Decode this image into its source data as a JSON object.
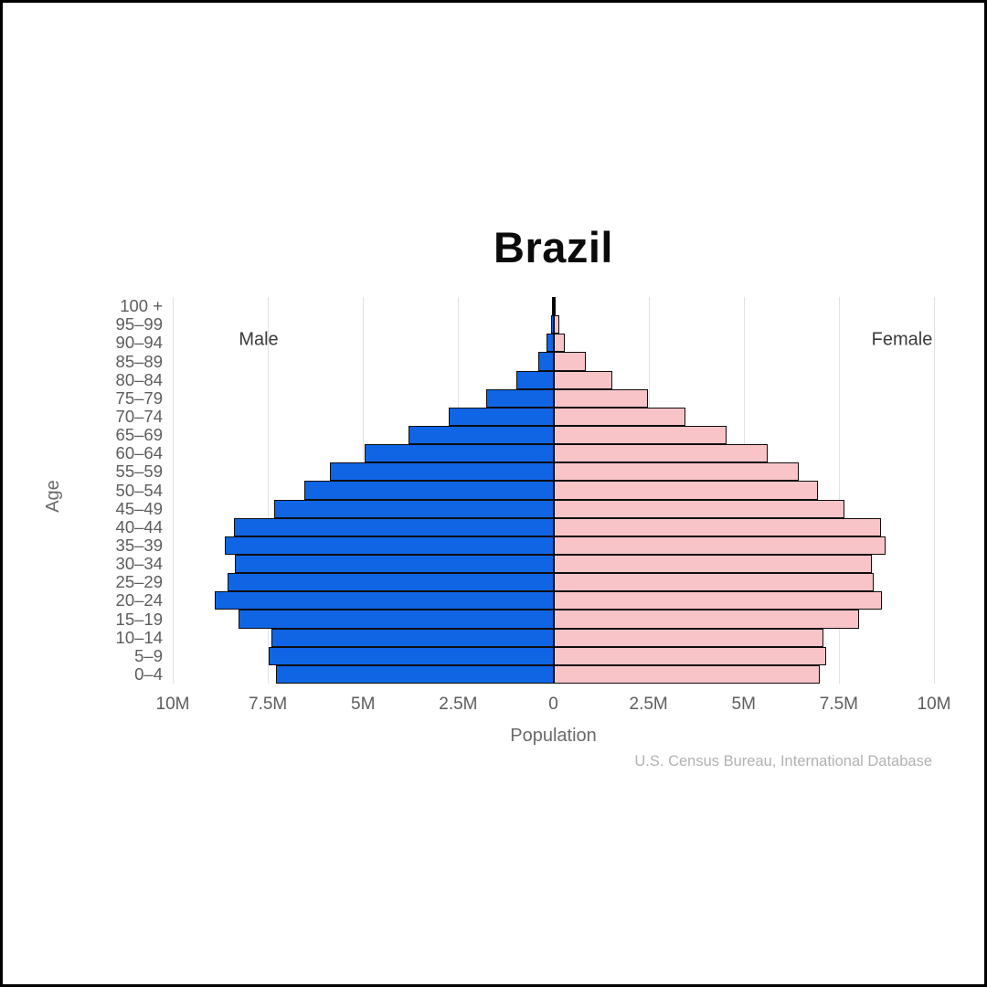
{
  "title": "Brazil",
  "labels": {
    "male": "Male",
    "female": "Female",
    "xlabel": "Population",
    "ylabel": "Age",
    "source": "U.S. Census Bureau, International Database"
  },
  "colors": {
    "male_bar": "#1065e5",
    "female_bar": "#f9c4c8",
    "bar_border": "#0d0d0d",
    "grid": "#e2e2e2",
    "center_axis": "#000000",
    "tick_text": "#5d5d5d",
    "title_text": "#0b0b0b",
    "source_text": "#b2b2b2"
  },
  "x_axis": {
    "ticks": [
      {
        "m": -10,
        "label": "10M"
      },
      {
        "m": -7.5,
        "label": "7.5M"
      },
      {
        "m": -5,
        "label": "5M"
      },
      {
        "m": -2.5,
        "label": "2.5M"
      },
      {
        "m": 0,
        "label": "0"
      },
      {
        "m": 2.5,
        "label": "2.5M"
      },
      {
        "m": 5,
        "label": "5M"
      },
      {
        "m": 7.5,
        "label": "7.5M"
      },
      {
        "m": 10,
        "label": "10M"
      }
    ]
  },
  "chart_data": {
    "type": "bar",
    "subtype": "population-pyramid",
    "title": "Brazil",
    "xlabel": "Population",
    "ylabel": "Age",
    "unit": "millions of people",
    "xlim": [
      -10,
      10
    ],
    "grid": true,
    "categories": [
      "100 +",
      "95–99",
      "90–94",
      "85–89",
      "80–84",
      "75–79",
      "70–74",
      "65–69",
      "60–64",
      "55–59",
      "50–54",
      "45–49",
      "40–44",
      "35–39",
      "30–34",
      "25–29",
      "20–24",
      "15–19",
      "10–14",
      "5–9",
      "0–4"
    ],
    "series": [
      {
        "name": "Male",
        "side": "left",
        "values": [
          0.03,
          0.07,
          0.17,
          0.4,
          0.97,
          1.76,
          2.74,
          3.8,
          4.95,
          5.88,
          6.55,
          7.34,
          8.4,
          8.63,
          8.36,
          8.56,
          8.89,
          8.26,
          7.41,
          7.47,
          7.29
        ]
      },
      {
        "name": "Female",
        "side": "right",
        "values": [
          0.05,
          0.15,
          0.29,
          0.86,
          1.55,
          2.48,
          3.48,
          4.56,
          5.63,
          6.44,
          6.96,
          7.64,
          8.61,
          8.72,
          8.37,
          8.41,
          8.64,
          8.03,
          7.09,
          7.17,
          7.0
        ]
      }
    ]
  }
}
